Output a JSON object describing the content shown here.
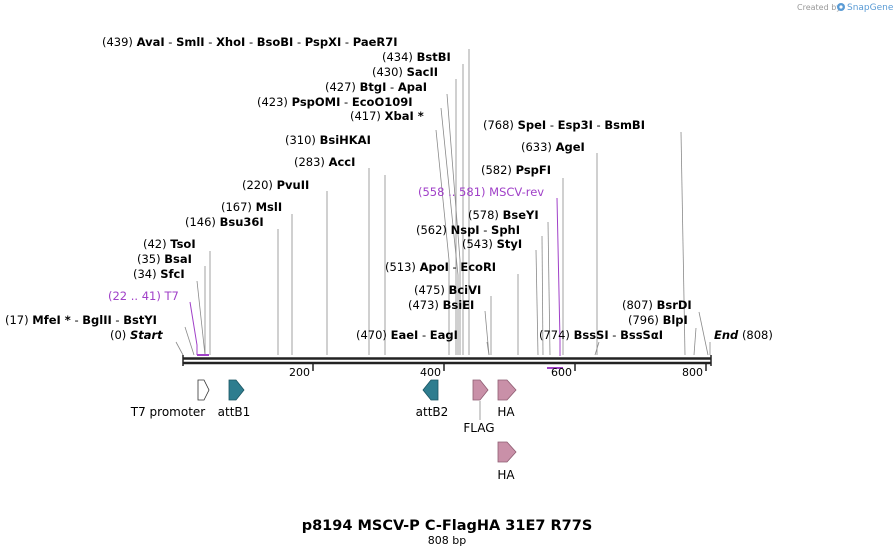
{
  "branding": {
    "created_by": "Created by",
    "app": "SnapGene"
  },
  "map": {
    "title": "p8194 MSCV-P C-FlagHA 31E7 R77S",
    "length_label": "808 bp",
    "total_bp": 808,
    "ticks": [
      200,
      400,
      600,
      800
    ]
  },
  "sites": [
    {
      "pos": "(439)",
      "names": [
        "AvaI",
        "SmlI",
        "XhoI",
        "BsoBI",
        "PspXI",
        "PaeR7I"
      ],
      "bp": 439
    },
    {
      "pos": "(434)",
      "names": [
        "BstBI"
      ],
      "bp": 434
    },
    {
      "pos": "(430)",
      "names": [
        "SacII"
      ],
      "bp": 430
    },
    {
      "pos": "(427)",
      "names": [
        "BtgI",
        "ApaI"
      ],
      "bp": 427
    },
    {
      "pos": "(423)",
      "names": [
        "PspOMI",
        "EcoO109I"
      ],
      "bp": 423
    },
    {
      "pos": "(417)",
      "names": [
        "XbaI *"
      ],
      "bp": 417
    },
    {
      "pos": "(768)",
      "names": [
        "SpeI",
        "Esp3I",
        "BsmBI"
      ],
      "bp": 768
    },
    {
      "pos": "(310)",
      "names": [
        "BsiHKAI"
      ],
      "bp": 310
    },
    {
      "pos": "(633)",
      "names": [
        "AgeI"
      ],
      "bp": 633
    },
    {
      "pos": "(283)",
      "names": [
        "AccI"
      ],
      "bp": 283
    },
    {
      "pos": "(582)",
      "names": [
        "PspFI"
      ],
      "bp": 582
    },
    {
      "pos": "(220)",
      "names": [
        "PvuII"
      ],
      "bp": 220
    },
    {
      "pos": "(578)",
      "names": [
        "BseYI"
      ],
      "bp": 578
    },
    {
      "pos": "(167)",
      "names": [
        "MslI"
      ],
      "bp": 167
    },
    {
      "pos": "(146)",
      "names": [
        "Bsu36I"
      ],
      "bp": 146
    },
    {
      "pos": "(562)",
      "names": [
        "NspI",
        "SphI"
      ],
      "bp": 562
    },
    {
      "pos": "(543)",
      "names": [
        "StyI"
      ],
      "bp": 543
    },
    {
      "pos": "(42)",
      "names": [
        "TsoI"
      ],
      "bp": 42
    },
    {
      "pos": "(513)",
      "names": [
        "ApoI",
        "EcoRI"
      ],
      "bp": 513
    },
    {
      "pos": "(35)",
      "names": [
        "BsaI"
      ],
      "bp": 35
    },
    {
      "pos": "(34)",
      "names": [
        "SfcI"
      ],
      "bp": 34
    },
    {
      "pos": "(475)",
      "names": [
        "BciVI"
      ],
      "bp": 475
    },
    {
      "pos": "(473)",
      "names": [
        "BsiEI"
      ],
      "bp": 473
    },
    {
      "pos": "(807)",
      "names": [
        "BsrDI"
      ],
      "bp": 807
    },
    {
      "pos": "(17)",
      "names": [
        "MfeI *",
        "BglII",
        "BstYI"
      ],
      "bp": 17
    },
    {
      "pos": "(796)",
      "names": [
        "BlpI"
      ],
      "bp": 796
    },
    {
      "pos": "(470)",
      "names": [
        "EaeI",
        "EagI"
      ],
      "bp": 470
    },
    {
      "pos": "(774)",
      "names": [
        "BssSI",
        "BssSαI"
      ],
      "bp": 774
    }
  ],
  "primers": [
    {
      "pos": "(558 .. 581)",
      "name": "MSCV-rev"
    },
    {
      "pos": "(22 .. 41)",
      "name": "T7"
    }
  ],
  "ends": {
    "start": {
      "pos": "(0)",
      "name": "Start"
    },
    "end": {
      "pos": "(808)",
      "name": "End"
    }
  },
  "features": [
    {
      "name": "T7 promoter",
      "color": "#ffffff"
    },
    {
      "name": "attB1",
      "color": "#2e7d8f"
    },
    {
      "name": "attB2",
      "color": "#2e7d8f"
    },
    {
      "name": "FLAG",
      "color": "#c990a8"
    },
    {
      "name": "HA",
      "color": "#c990a8"
    },
    {
      "name": "HA",
      "color": "#c990a8"
    }
  ],
  "colors": {
    "primer": "#a040c8",
    "backbone": "#222222",
    "leader": "#8a8a8a"
  }
}
